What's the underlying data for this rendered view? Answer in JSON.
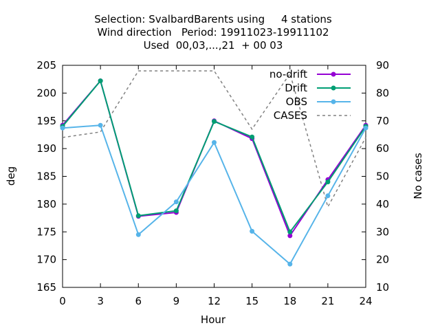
{
  "chart_data": {
    "type": "line",
    "title_lines": [
      "Selection: SvalbardBarents using     4 stations",
      "Wind direction   Period: 19911023-19911102",
      "Used  00,03,...,21  + 00 03"
    ],
    "xlabel": "Hour",
    "ylabel": "deg",
    "y2label": "No cases",
    "x": [
      0,
      3,
      6,
      9,
      12,
      15,
      18,
      21,
      24
    ],
    "xlim": [
      0,
      24
    ],
    "ylim": [
      165,
      205
    ],
    "y2lim": [
      10,
      90
    ],
    "xticks": [
      "0",
      "3",
      "6",
      "9",
      "12",
      "15",
      "18",
      "21",
      "24"
    ],
    "yticks": [
      "165",
      "170",
      "175",
      "180",
      "185",
      "190",
      "195",
      "200",
      "205"
    ],
    "y2ticks": [
      "10",
      "20",
      "30",
      "40",
      "50",
      "60",
      "70",
      "80",
      "90"
    ],
    "grid": false,
    "legend_position": "top-right",
    "series": [
      {
        "name": "no-drift",
        "axis": "y1",
        "color": "#9400d3",
        "dashed": false,
        "markers": true,
        "values": [
          194.2,
          202.2,
          177.8,
          178.5,
          195.0,
          191.8,
          174.3,
          184.4,
          194.2
        ]
      },
      {
        "name": "Drift",
        "axis": "y1",
        "color": "#009e73",
        "dashed": false,
        "markers": true,
        "values": [
          194.0,
          202.2,
          177.9,
          178.8,
          194.9,
          192.1,
          175.0,
          184.0,
          194.0
        ]
      },
      {
        "name": "OBS",
        "axis": "y1",
        "color": "#56b4e9",
        "dashed": false,
        "markers": true,
        "values": [
          193.7,
          194.2,
          174.5,
          180.4,
          191.1,
          175.1,
          169.2,
          181.5,
          193.7
        ]
      },
      {
        "name": "CASES",
        "axis": "y2",
        "color": "#808080",
        "dashed": true,
        "markers": false,
        "values": [
          64,
          66,
          88,
          88,
          88,
          67,
          87,
          39,
          64
        ]
      }
    ]
  }
}
